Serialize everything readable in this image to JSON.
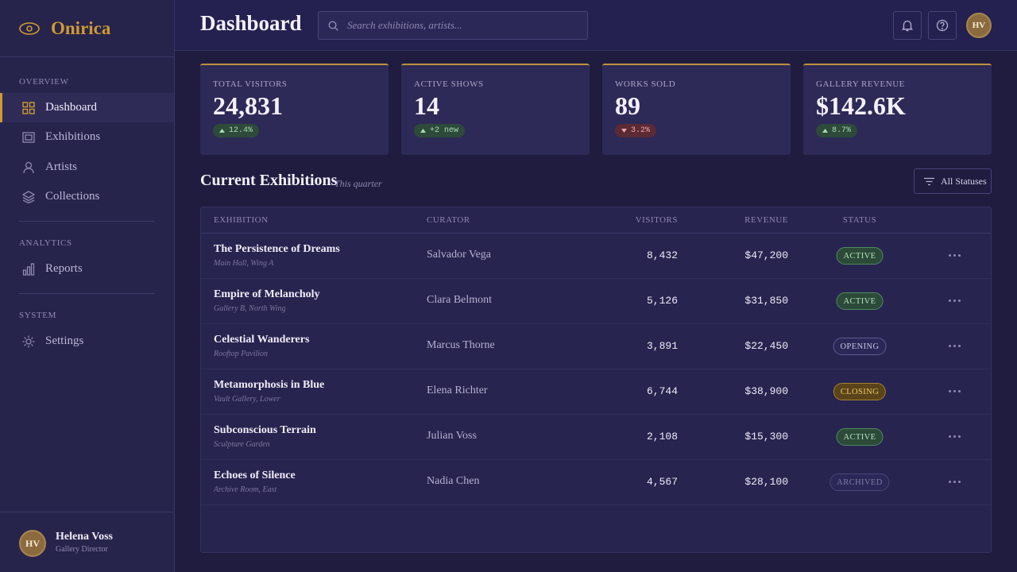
{
  "sidebar": {
    "brand": "Onirica",
    "sections": [
      {
        "title": "OVERVIEW",
        "items": [
          "Dashboard",
          "Exhibitions",
          "Artists",
          "Collections"
        ]
      },
      {
        "title": "ANALYTICS",
        "items": [
          "Reports"
        ]
      },
      {
        "title": "SYSTEM",
        "items": [
          "Settings"
        ]
      }
    ],
    "user": {
      "initials": "HV",
      "name": "Helena Voss",
      "role": "Gallery Director"
    }
  },
  "header": {
    "title": "Dashboard",
    "search_placeholder": "Search exhibitions, artists...",
    "avatar": "HV"
  },
  "stats": [
    {
      "label": "TOTAL VISITORS",
      "value": "24,831",
      "change": "12.4%",
      "trend": "up"
    },
    {
      "label": "ACTIVE SHOWS",
      "value": "14",
      "change": "+2 new",
      "trend": "up"
    },
    {
      "label": "WORKS SOLD",
      "value": "89",
      "change": "3.2%",
      "trend": "down"
    },
    {
      "label": "GALLERY REVENUE",
      "value": "$142.6K",
      "change": "8.7%",
      "trend": "up"
    }
  ],
  "table": {
    "title": "Current Exhibitions",
    "subtitle": "This quarter",
    "filter": "All Statuses",
    "columns": [
      "EXHIBITION",
      "CURATOR",
      "VISITORS",
      "REVENUE",
      "STATUS"
    ],
    "rows": [
      [
        "The Persistence of Dreams",
        "Main Hall, Wing A",
        "Salvador Vega",
        "8,432",
        "$47,200",
        "ACTIVE"
      ],
      [
        "Empire of Melancholy",
        "Gallery B, North Wing",
        "Clara Belmont",
        "5,126",
        "$31,850",
        "ACTIVE"
      ],
      [
        "Celestial Wanderers",
        "Rooftop Pavilion",
        "Marcus Thorne",
        "3,891",
        "$22,450",
        "OPENING"
      ],
      [
        "Metamorphosis in Blue",
        "Vault Gallery, Lower",
        "Elena Richter",
        "6,744",
        "$38,900",
        "CLOSING"
      ],
      [
        "Subconscious Terrain",
        "Sculpture Garden",
        "Julian Voss",
        "2,108",
        "$15,300",
        "ACTIVE"
      ],
      [
        "Echoes of Silence",
        "Archive Room, East",
        "Nadia Chen",
        "4,567",
        "$28,100",
        "ARCHIVED"
      ]
    ]
  }
}
